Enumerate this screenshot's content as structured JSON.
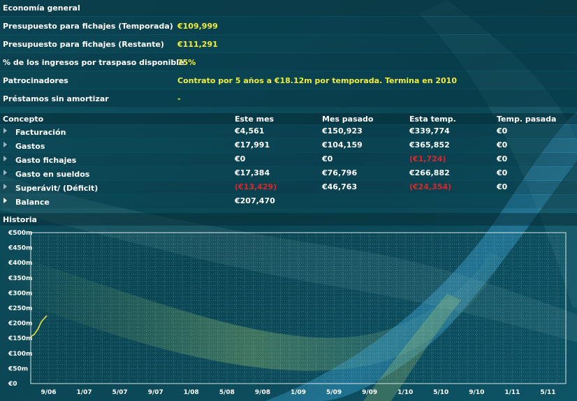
{
  "general": {
    "title": "Economía general",
    "rows": [
      {
        "label": "Presupuesto para fichajes (Temporada)",
        "value": "€109,999"
      },
      {
        "label": "Presupuesto para fichajes (Restante)",
        "value": "€111,291"
      },
      {
        "label": "% de los ingresos por traspaso disponible",
        "value": "75%"
      },
      {
        "label": "Patrocinadores",
        "value": "Contrato por 5 años a €18.12m por temporada. Termina en 2010"
      },
      {
        "label": "Préstamos sin amortizar",
        "value": "-"
      }
    ]
  },
  "table": {
    "headers": [
      "Concepto",
      "Este mes",
      "Mes pasado",
      "Esta temp.",
      "Temp. pasada"
    ],
    "rows": [
      {
        "concept": "Facturación",
        "este_mes": "€4,561",
        "mes_pasado": "€150,923",
        "esta_temp": "€339,774",
        "temp_pasada": "€0"
      },
      {
        "concept": "Gastos",
        "este_mes": "€17,991",
        "mes_pasado": "€104,159",
        "esta_temp": "€365,852",
        "temp_pasada": "€0"
      },
      {
        "concept": "Gasto fichajes",
        "este_mes": "€0",
        "mes_pasado": "€0",
        "esta_temp": "(€1,724)",
        "temp_pasada": "€0"
      },
      {
        "concept": "Gasto en sueldos",
        "este_mes": "€17,384",
        "mes_pasado": "€76,796",
        "esta_temp": "€266,882",
        "temp_pasada": "€0"
      },
      {
        "concept": "Superávit/ (Déficit)",
        "este_mes": "(€13,429)",
        "mes_pasado": "€46,763",
        "esta_temp": "(€24,354)",
        "temp_pasada": "€0"
      },
      {
        "concept": "Balance",
        "este_mes": "€207,470",
        "mes_pasado": "",
        "esta_temp": "",
        "temp_pasada": ""
      }
    ],
    "negative_cells": [
      [
        2,
        "esta_temp"
      ],
      [
        4,
        "este_mes"
      ],
      [
        4,
        "esta_temp"
      ]
    ]
  },
  "history": {
    "title": "Historia"
  },
  "chart_data": {
    "type": "line",
    "title": "",
    "xlabel": "",
    "ylabel": "",
    "y_tick_labels": [
      "€500m",
      "€450m",
      "€400m",
      "€350m",
      "€300m",
      "€250m",
      "€200m",
      "€150m",
      "€100m",
      "€50m",
      "€0"
    ],
    "x_tick_labels": [
      "9/06",
      "1/07",
      "5/07",
      "9/07",
      "1/08",
      "5/08",
      "9/08",
      "1/09",
      "5/09",
      "9/09",
      "1/10",
      "5/10",
      "9/10",
      "1/11",
      "5/11"
    ],
    "ylim": [
      0,
      500
    ],
    "grid": true,
    "series": [
      {
        "color": "#f2ef3a",
        "x": [
          0,
          0.1,
          0.2,
          0.3,
          0.45
        ],
        "y": [
          155,
          163,
          180,
          205,
          225
        ]
      }
    ]
  },
  "colors": {
    "value_yellow": "#f2ef3a",
    "negative_red": "#d8282a",
    "background": "#0c4a58"
  }
}
